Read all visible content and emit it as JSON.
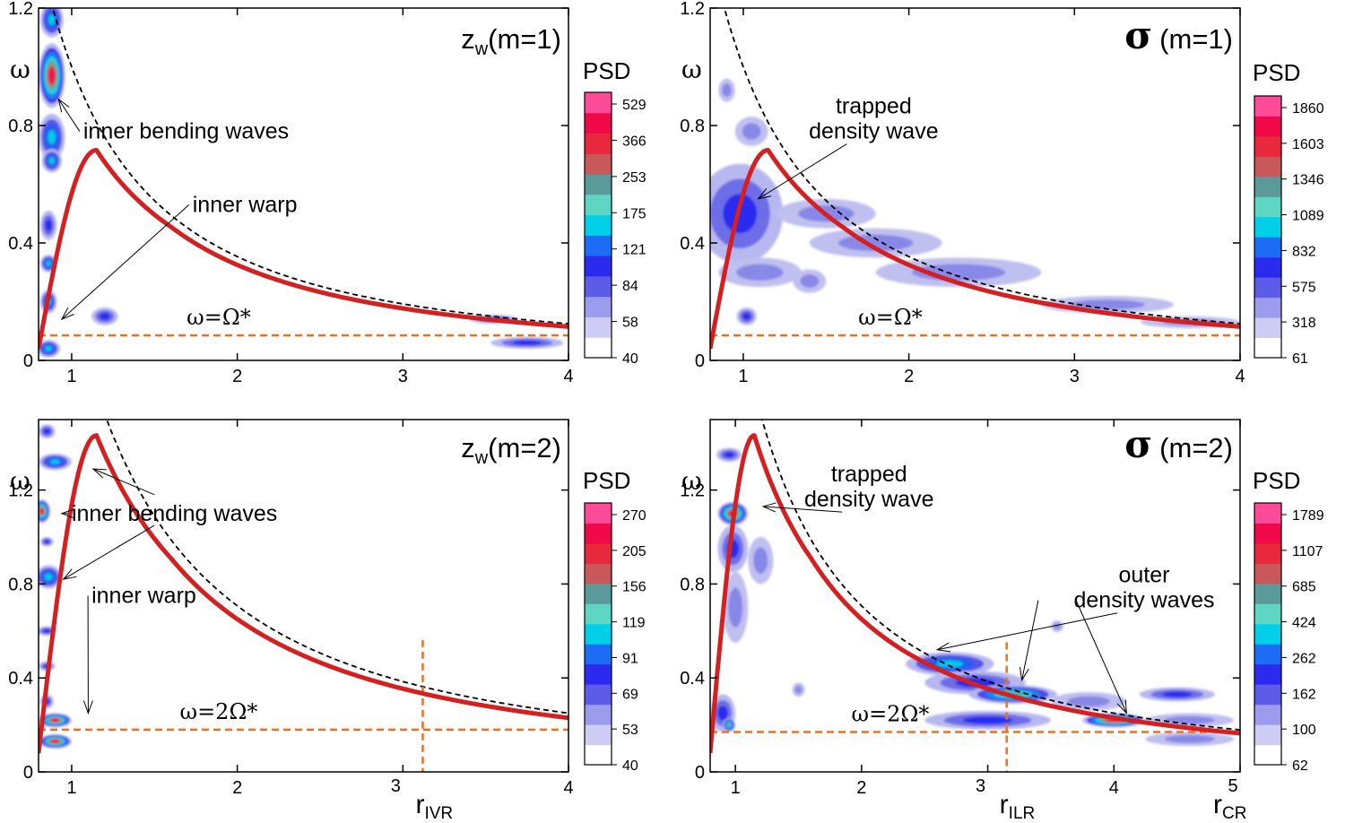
{
  "figure": {
    "ylabel": "ω",
    "psd_label": "PSD"
  },
  "chart_data": [
    {
      "type": "heatmap",
      "id": "p1",
      "title_var": "z",
      "title_sub": "w",
      "title_mode": "(m=1)",
      "xlim": [
        0.8,
        4
      ],
      "ylim": [
        0,
        1.2
      ],
      "xticks": [
        1,
        2,
        3,
        4
      ],
      "xtick_labels": [
        "1",
        "2",
        "3",
        "4"
      ],
      "yticks": [
        0,
        0.4,
        0.8,
        1.2
      ],
      "ytick_labels": [
        "0",
        "0.4",
        "0.8",
        "1.2"
      ],
      "colorbar_ticks": [
        "529",
        "366",
        "253",
        "175",
        "121",
        "84",
        "58",
        "40"
      ],
      "line_label": "ω=Ω*",
      "line_y": 0.085,
      "red_curve_scale": 1,
      "dashed_curve_scale": 1,
      "blobs": [
        {
          "x": 0.88,
          "y": 0.97,
          "rx": 0.08,
          "ry": 0.11,
          "level": 6
        },
        {
          "x": 0.88,
          "y": 1.16,
          "rx": 0.07,
          "ry": 0.06,
          "level": 3
        },
        {
          "x": 0.88,
          "y": 0.76,
          "rx": 0.08,
          "ry": 0.08,
          "level": 3
        },
        {
          "x": 0.88,
          "y": 0.68,
          "rx": 0.06,
          "ry": 0.04,
          "level": 3
        },
        {
          "x": 0.86,
          "y": 0.46,
          "rx": 0.05,
          "ry": 0.05,
          "level": 2
        },
        {
          "x": 0.86,
          "y": 0.33,
          "rx": 0.05,
          "ry": 0.03,
          "level": 3
        },
        {
          "x": 0.86,
          "y": 0.2,
          "rx": 0.05,
          "ry": 0.04,
          "level": 3
        },
        {
          "x": 0.86,
          "y": 0.04,
          "rx": 0.07,
          "ry": 0.03,
          "level": 3
        },
        {
          "x": 1.2,
          "y": 0.15,
          "rx": 0.08,
          "ry": 0.03,
          "level": 2
        },
        {
          "x": 3.55,
          "y": 0.14,
          "rx": 0.15,
          "ry": 0.015,
          "level": 2
        },
        {
          "x": 3.75,
          "y": 0.06,
          "rx": 0.22,
          "ry": 0.02,
          "level": 2
        }
      ],
      "annotations": [
        {
          "text": [
            "inner bending waves"
          ],
          "tx": 1.07,
          "ty": 0.78,
          "ax": 0.92,
          "ay": 0.89
        },
        {
          "text": [
            "inner warp"
          ],
          "tx": 1.73,
          "ty": 0.53,
          "ax": 0.94,
          "ay": 0.14
        }
      ]
    },
    {
      "type": "heatmap",
      "id": "p2",
      "title_var": "σ",
      "title_mode": "(m=1)",
      "xlim": [
        0.8,
        4
      ],
      "ylim": [
        0,
        1.2
      ],
      "xticks": [
        1,
        2,
        3,
        4
      ],
      "xtick_labels": [
        "1",
        "2",
        "3",
        "4"
      ],
      "yticks": [
        0,
        0.4,
        0.8,
        1.2
      ],
      "ytick_labels": [
        "0",
        "0.4",
        "0.8",
        "1.2"
      ],
      "colorbar_ticks": [
        "1860",
        "1603",
        "1346",
        "1089",
        "832",
        "575",
        "318",
        "61"
      ],
      "line_label": "ω=Ω*",
      "line_y": 0.085,
      "red_curve_scale": 1,
      "dashed_curve_scale": 1,
      "blobs": [
        {
          "x": 1.03,
          "y": 0.52,
          "rx": 0.15,
          "ry": 0.08,
          "level": 6
        },
        {
          "x": 0.98,
          "y": 0.5,
          "rx": 0.26,
          "ry": 0.17,
          "level": 2
        },
        {
          "x": 1.05,
          "y": 0.78,
          "rx": 0.1,
          "ry": 0.05,
          "level": 1
        },
        {
          "x": 0.9,
          "y": 0.92,
          "rx": 0.05,
          "ry": 0.04,
          "level": 1
        },
        {
          "x": 1.5,
          "y": 0.5,
          "rx": 0.3,
          "ry": 0.05,
          "level": 1
        },
        {
          "x": 1.8,
          "y": 0.4,
          "rx": 0.4,
          "ry": 0.05,
          "level": 1
        },
        {
          "x": 2.3,
          "y": 0.3,
          "rx": 0.5,
          "ry": 0.05,
          "level": 1
        },
        {
          "x": 1.1,
          "y": 0.3,
          "rx": 0.25,
          "ry": 0.05,
          "level": 1
        },
        {
          "x": 1.4,
          "y": 0.27,
          "rx": 0.1,
          "ry": 0.04,
          "level": 1
        },
        {
          "x": 1.02,
          "y": 0.15,
          "rx": 0.06,
          "ry": 0.03,
          "level": 2
        },
        {
          "x": 3.2,
          "y": 0.19,
          "rx": 0.4,
          "ry": 0.03,
          "level": 1
        },
        {
          "x": 3.7,
          "y": 0.13,
          "rx": 0.3,
          "ry": 0.02,
          "level": 1
        }
      ],
      "annotations": [
        {
          "text": [
            "trapped",
            "density wave"
          ],
          "tx": 1.3,
          "ty": 0.78,
          "ax": 1.09,
          "ay": 0.55
        }
      ]
    },
    {
      "type": "heatmap",
      "id": "p3",
      "title_var": "z",
      "title_sub": "w",
      "title_mode": "(m=2)",
      "xlim": [
        0.8,
        4
      ],
      "ylim": [
        0,
        1.5
      ],
      "xticks": [
        1,
        2,
        3,
        4
      ],
      "xtick_labels": [
        "1",
        "2",
        "3",
        "4"
      ],
      "yticks": [
        0,
        0.4,
        0.8,
        1.2
      ],
      "ytick_labels": [
        "0",
        "0.4",
        "0.8",
        "1.2"
      ],
      "colorbar_ticks": [
        "270",
        "205",
        "156",
        "119",
        "91",
        "69",
        "53",
        "40"
      ],
      "line_label": "ω=2Ω*",
      "line_y": 0.18,
      "red_curve_scale": 2,
      "dashed_curve_scale": 2,
      "vline_x": 3.12,
      "rlabel_main": "r",
      "rlabel_sub": "IVR",
      "rlabel_x": 3.12,
      "blobs": [
        {
          "x": 0.9,
          "y": 1.32,
          "rx": 0.1,
          "ry": 0.035,
          "level": 3
        },
        {
          "x": 0.82,
          "y": 1.11,
          "rx": 0.05,
          "ry": 0.05,
          "level": 6
        },
        {
          "x": 0.86,
          "y": 0.83,
          "rx": 0.08,
          "ry": 0.05,
          "level": 3
        },
        {
          "x": 0.9,
          "y": 0.22,
          "rx": 0.1,
          "ry": 0.03,
          "level": 6
        },
        {
          "x": 0.9,
          "y": 0.13,
          "rx": 0.1,
          "ry": 0.03,
          "level": 6
        },
        {
          "x": 0.85,
          "y": 1.45,
          "rx": 0.05,
          "ry": 0.03,
          "level": 2
        },
        {
          "x": 0.85,
          "y": 0.98,
          "rx": 0.04,
          "ry": 0.02,
          "level": 2
        },
        {
          "x": 0.85,
          "y": 0.6,
          "rx": 0.06,
          "ry": 0.02,
          "level": 2
        },
        {
          "x": 0.85,
          "y": 0.45,
          "rx": 0.05,
          "ry": 0.02,
          "level": 2
        },
        {
          "x": 0.85,
          "y": 0.3,
          "rx": 0.04,
          "ry": 0.03,
          "level": 2
        }
      ],
      "annotations": [
        {
          "text": [
            "inner bending waves"
          ],
          "tx": 1.0,
          "ty": 1.1,
          "ax": 0.94,
          "ay": 1.1
        },
        {
          "text": [
            ""
          ],
          "tx": 1.5,
          "ty": 1.18,
          "ax": 1.13,
          "ay": 1.29
        },
        {
          "text": [
            ""
          ],
          "tx": 1.5,
          "ty": 1.05,
          "ax": 0.95,
          "ay": 0.82
        },
        {
          "text": [
            "inner warp"
          ],
          "tx": 1.12,
          "ty": 0.75,
          "ax": 1.1,
          "ay": 0.25
        }
      ]
    },
    {
      "type": "heatmap",
      "id": "p4",
      "title_var": "σ",
      "title_mode": "(m=2)",
      "xlim": [
        0.8,
        5
      ],
      "ylim": [
        0,
        1.5
      ],
      "xticks": [
        1,
        2,
        3,
        4,
        5
      ],
      "xtick_labels": [
        "1",
        "2",
        "3",
        "4",
        "5"
      ],
      "yticks": [
        0,
        0.4,
        0.8,
        1.2
      ],
      "ytick_labels": [
        "0",
        "0.4",
        "0.8",
        "1.2"
      ],
      "colorbar_ticks": [
        "1789",
        "1107",
        "685",
        "424",
        "262",
        "162",
        "100",
        "62"
      ],
      "line_label": "ω=2Ω*",
      "line_y": 0.17,
      "red_curve_scale": 2,
      "dashed_curve_scale": 2,
      "vline_x": 3.15,
      "rlabel_main": "r",
      "rlabel_sub": "ILR",
      "rlabel_x": 3.15,
      "rlabel2_main": "r",
      "rlabel2_sub": "CR",
      "blobs": [
        {
          "x": 0.98,
          "y": 1.1,
          "rx": 0.12,
          "ry": 0.05,
          "level": 6
        },
        {
          "x": 0.95,
          "y": 1.35,
          "rx": 0.1,
          "ry": 0.03,
          "level": 2
        },
        {
          "x": 0.98,
          "y": 0.95,
          "rx": 0.12,
          "ry": 0.1,
          "level": 2
        },
        {
          "x": 1.0,
          "y": 0.7,
          "rx": 0.1,
          "ry": 0.15,
          "level": 1
        },
        {
          "x": 1.2,
          "y": 0.9,
          "rx": 0.1,
          "ry": 0.1,
          "level": 1
        },
        {
          "x": 0.9,
          "y": 0.25,
          "rx": 0.1,
          "ry": 0.08,
          "level": 2
        },
        {
          "x": 0.95,
          "y": 0.2,
          "rx": 0.05,
          "ry": 0.03,
          "level": 4
        },
        {
          "x": 2.7,
          "y": 0.46,
          "rx": 0.35,
          "ry": 0.05,
          "level": 3
        },
        {
          "x": 2.9,
          "y": 0.38,
          "rx": 0.4,
          "ry": 0.05,
          "level": 2
        },
        {
          "x": 3.2,
          "y": 0.33,
          "rx": 0.35,
          "ry": 0.04,
          "level": 4
        },
        {
          "x": 3.0,
          "y": 0.22,
          "rx": 0.5,
          "ry": 0.04,
          "level": 2
        },
        {
          "x": 4.0,
          "y": 0.22,
          "rx": 0.25,
          "ry": 0.03,
          "level": 6
        },
        {
          "x": 4.5,
          "y": 0.33,
          "rx": 0.3,
          "ry": 0.03,
          "level": 2
        },
        {
          "x": 4.6,
          "y": 0.22,
          "rx": 0.35,
          "ry": 0.03,
          "level": 1
        },
        {
          "x": 4.6,
          "y": 0.14,
          "rx": 0.35,
          "ry": 0.03,
          "level": 1
        },
        {
          "x": 3.8,
          "y": 0.3,
          "rx": 0.3,
          "ry": 0.04,
          "level": 1
        },
        {
          "x": 1.5,
          "y": 0.35,
          "rx": 0.05,
          "ry": 0.03,
          "level": 1
        },
        {
          "x": 3.55,
          "y": 0.62,
          "rx": 0.05,
          "ry": 0.025,
          "level": 1
        }
      ],
      "annotations": [
        {
          "text": [
            "trapped",
            "density wave"
          ],
          "tx": 1.42,
          "ty": 1.16,
          "ax": 1.22,
          "ay": 1.13
        },
        {
          "text": [
            "outer",
            "density waves"
          ],
          "tx": 3.6,
          "ty": 0.73,
          "ax": 2.6,
          "ay": 0.52
        },
        {
          "text": [
            ""
          ],
          "tx": 3.4,
          "ty": 0.73,
          "ax": 3.27,
          "ay": 0.39
        },
        {
          "text": [
            ""
          ],
          "tx": 3.7,
          "ty": 0.73,
          "ax": 4.1,
          "ay": 0.25
        }
      ]
    }
  ]
}
